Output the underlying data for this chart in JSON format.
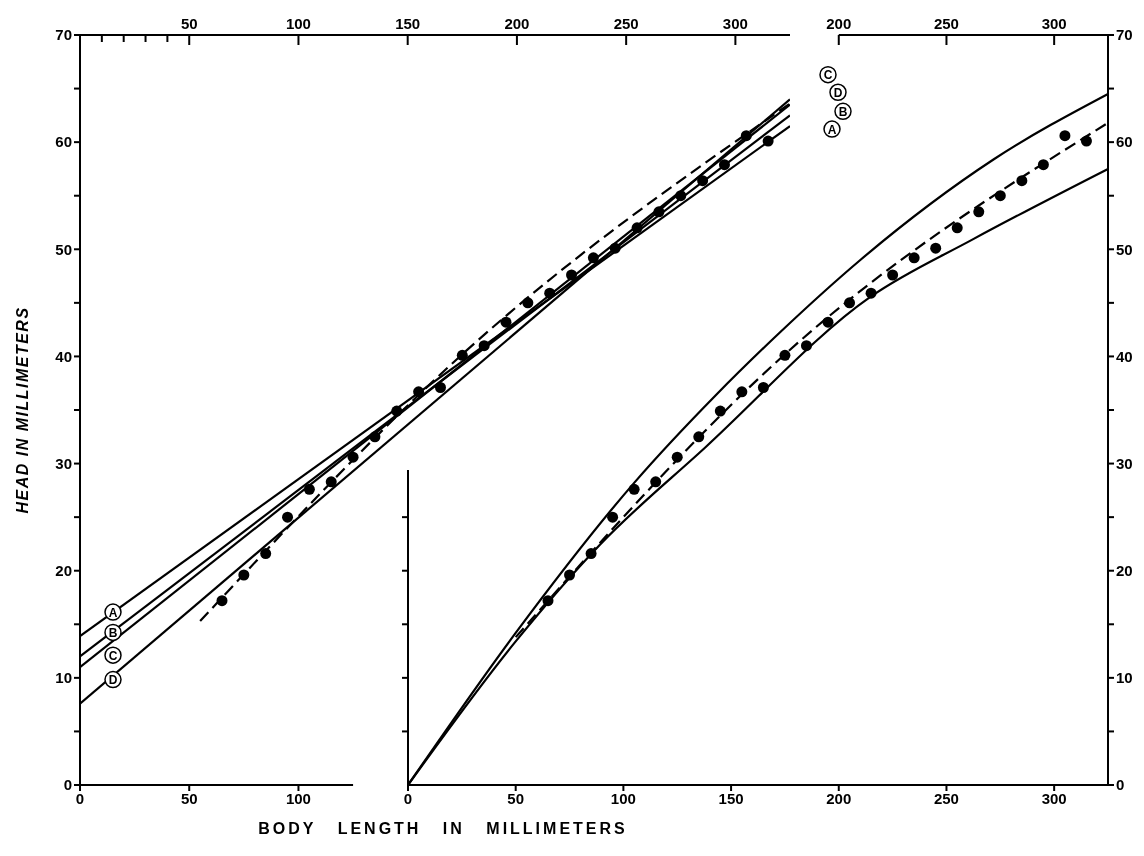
{
  "chart_data": [
    {
      "type": "line",
      "legend": "top right",
      "ylabel": "HEAD IN MILLIMETERS",
      "xlabel": "BODY LENGTH IN MILLIMETERS",
      "xlim": [
        0,
        325
      ],
      "xticks": [
        0,
        50,
        100
      ],
      "x2lim": [
        0,
        325
      ],
      "x2ticks": [
        {
          "value": 10,
          "label": null
        },
        {
          "value": 20,
          "label": null
        },
        {
          "value": 30,
          "label": null
        },
        {
          "value": 40,
          "label": null
        },
        50,
        100,
        150,
        200,
        250,
        300
      ],
      "ylim": [
        0,
        70
      ],
      "yticks": [
        0,
        {
          "value": 5,
          "label": null
        },
        10,
        {
          "value": 15,
          "label": null
        },
        20,
        {
          "value": 25,
          "label": null
        },
        30,
        {
          "value": 35,
          "label": null
        },
        40,
        {
          "value": 45,
          "label": null
        },
        50,
        {
          "value": 55,
          "label": null
        },
        60,
        {
          "value": 65,
          "label": null
        },
        70
      ],
      "series": [
        {
          "name": "A",
          "type": "line",
          "color": "#000000",
          "line_style": "solid",
          "marker": "none",
          "x": [
            0,
            325
          ],
          "values": [
            13.9,
            61.5
          ]
        },
        {
          "name": "B",
          "type": "line",
          "color": "#000000",
          "line_style": "solid",
          "marker": "none",
          "x": [
            0,
            325
          ],
          "values": [
            12.0,
            62.5
          ]
        },
        {
          "name": "C",
          "type": "line",
          "color": "#000000",
          "line_style": "solid",
          "marker": "none",
          "x": [
            0,
            325
          ],
          "values": [
            11.0,
            63.5
          ]
        },
        {
          "name": "D",
          "type": "line",
          "color": "#000000",
          "line_style": "solid",
          "marker": "none",
          "x": [
            0,
            325
          ],
          "values": [
            7.6,
            64.0
          ]
        },
        {
          "type": "line",
          "color": "#000000",
          "line_style": "dashed",
          "marker": "none",
          "x": [
            55,
            175,
            325
          ],
          "values": [
            15.3,
            40.2,
            63.6
          ]
        },
        {
          "type": "scatter",
          "color": "#000000",
          "marker": "circle",
          "x": [
            65,
            75,
            85,
            95,
            105,
            115,
            125,
            135,
            145,
            155,
            165,
            175,
            185,
            195,
            205,
            215,
            225,
            235,
            245,
            255,
            265,
            275,
            285,
            295,
            305,
            315
          ],
          "values": [
            17.2,
            19.6,
            21.6,
            25.0,
            27.6,
            28.3,
            30.6,
            32.5,
            34.9,
            36.7,
            37.1,
            40.1,
            41.0,
            43.2,
            45.0,
            45.9,
            47.6,
            49.2,
            50.1,
            52.0,
            53.5,
            55.0,
            56.4,
            57.9,
            60.6,
            60.1
          ]
        }
      ]
    },
    {
      "type": "line",
      "xlim": [
        0,
        325
      ],
      "xticks": [
        0,
        50,
        100,
        150,
        200,
        250,
        300
      ],
      "x2lim": [
        0,
        325
      ],
      "x2ticks": [
        200,
        250,
        300
      ],
      "y2lim": [
        0,
        70
      ],
      "y2ticks": [
        0,
        {
          "value": 5,
          "label": null
        },
        10,
        {
          "value": 15,
          "label": null
        },
        20,
        {
          "value": 25,
          "label": null
        },
        30,
        {
          "value": 35,
          "label": null
        },
        40,
        {
          "value": 45,
          "label": null
        },
        50,
        {
          "value": 55,
          "label": null
        },
        60,
        {
          "value": 65,
          "label": null
        },
        70
      ],
      "series": [
        {
          "type": "line",
          "axis": "y2",
          "color": "#000000",
          "line_style": "solid",
          "marker": "none",
          "x": [
            0,
            50,
            105,
            143,
            173,
            210,
            272,
            325
          ],
          "values": [
            0,
            14.2,
            28.2,
            36.4,
            42.3,
            49.0,
            58.4,
            64.5
          ]
        },
        {
          "type": "line",
          "axis": "y2",
          "color": "#000000",
          "line_style": "solid",
          "marker": "none",
          "x": [
            0,
            50,
            89,
            138,
            215,
            262,
            325
          ],
          "values": [
            0,
            13.4,
            22.4,
            31.5,
            45.6,
            50.9,
            57.5
          ]
        },
        {
          "type": "line",
          "axis": "y2",
          "color": "#000000",
          "line_style": "dashed",
          "marker": "none",
          "x": [
            50,
            175,
            325
          ],
          "values": [
            13.8,
            40.2,
            61.8
          ]
        },
        {
          "type": "scatter",
          "axis": "y2",
          "color": "#000000",
          "marker": "circle",
          "x": [
            65,
            75,
            85,
            95,
            105,
            115,
            125,
            135,
            145,
            155,
            165,
            175,
            185,
            195,
            205,
            215,
            225,
            235,
            245,
            255,
            265,
            275,
            285,
            295,
            305,
            315
          ],
          "values": [
            17.2,
            19.6,
            21.6,
            25.0,
            27.6,
            28.3,
            30.6,
            32.5,
            34.9,
            36.7,
            37.1,
            40.1,
            41.0,
            43.2,
            45.0,
            45.9,
            47.6,
            49.2,
            50.1,
            52.0,
            53.5,
            55.0,
            56.4,
            57.9,
            60.6,
            60.1
          ]
        }
      ]
    }
  ]
}
